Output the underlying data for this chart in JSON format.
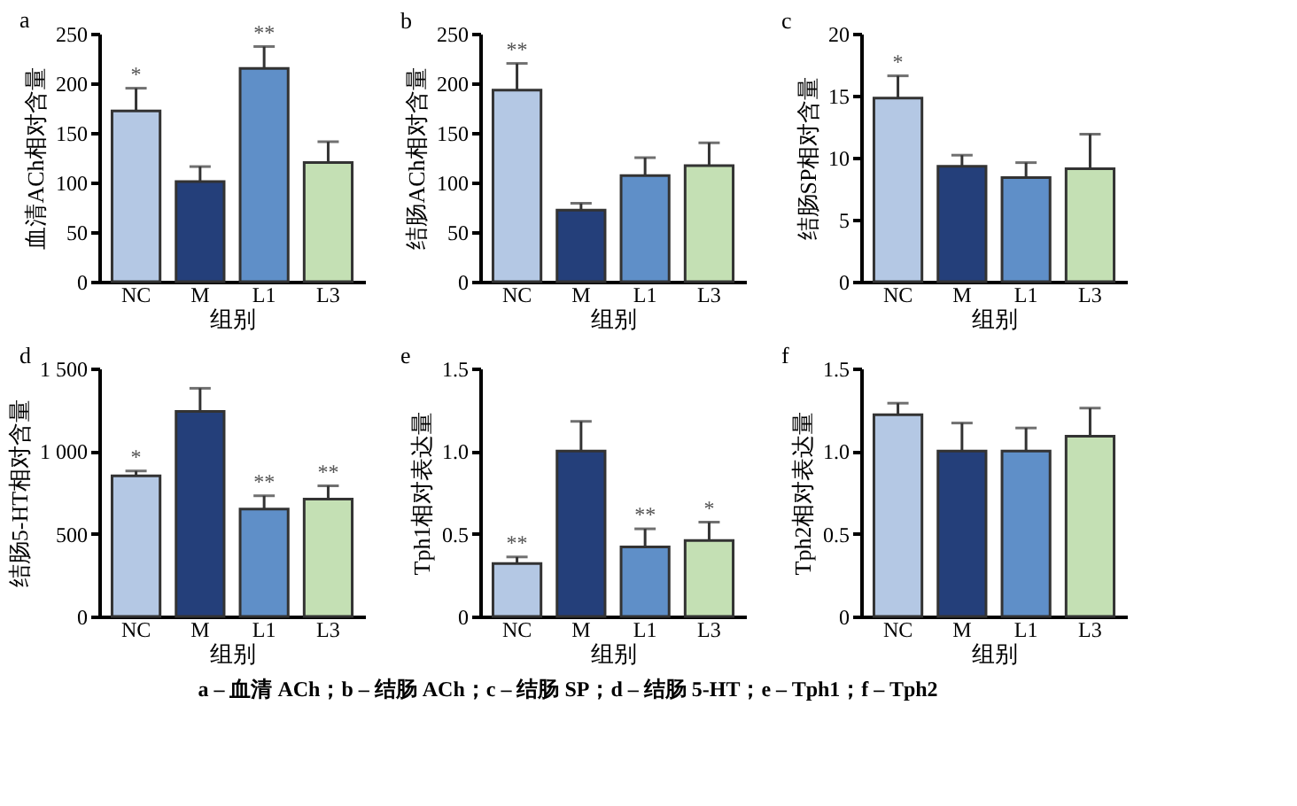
{
  "chart_data": [
    {
      "type": "bar",
      "title": "a",
      "categories": [
        "NC",
        "M",
        "L1",
        "L3"
      ],
      "values": [
        172,
        101,
        215,
        120
      ],
      "colors": [
        "#b4c8e4",
        "#243f7a",
        "#5f8fc8",
        "#c4e0b4"
      ],
      "errors": [
        [
          172,
          195
        ],
        [
          101,
          116
        ],
        [
          215,
          237
        ],
        [
          120,
          141
        ]
      ],
      "ylim": [
        0,
        250
      ],
      "yticks": [
        0,
        50,
        100,
        150,
        200,
        250
      ],
      "xlabel": "组别",
      "ylabel": "血清ACh相对含量",
      "annotations": [
        {
          "text": "*",
          "x": "NC",
          "y": 195
        },
        {
          "text": "**",
          "x": "L1",
          "y": 237
        }
      ]
    },
    {
      "type": "bar",
      "title": "b",
      "categories": [
        "NC",
        "M",
        "L1",
        "L3"
      ],
      "values": [
        193,
        72,
        107,
        117
      ],
      "colors": [
        "#b4c8e4",
        "#243f7a",
        "#5f8fc8",
        "#c4e0b4"
      ],
      "errors": [
        [
          193,
          220
        ],
        [
          72,
          79
        ],
        [
          107,
          125
        ],
        [
          117,
          140
        ]
      ],
      "ylim": [
        0,
        250
      ],
      "yticks": [
        0,
        50,
        100,
        150,
        200,
        250
      ],
      "xlabel": "组别",
      "ylabel": "结肠ACh相对含量",
      "annotations": [
        {
          "text": "**",
          "x": "NC",
          "y": 220
        }
      ]
    },
    {
      "type": "bar",
      "title": "c",
      "categories": [
        "NC",
        "M",
        "L1",
        "L3"
      ],
      "values": [
        14.8,
        9.3,
        8.4,
        9.1
      ],
      "colors": [
        "#b4c8e4",
        "#243f7a",
        "#5f8fc8",
        "#c4e0b4"
      ],
      "errors": [
        [
          14.8,
          16.6
        ],
        [
          9.3,
          10.2
        ],
        [
          8.4,
          9.6
        ],
        [
          9.1,
          11.9
        ]
      ],
      "ylim": [
        0,
        20
      ],
      "yticks": [
        0,
        5,
        10,
        15,
        20
      ],
      "xlabel": "组别",
      "ylabel": "结肠SP相对含量",
      "annotations": [
        {
          "text": "*",
          "x": "NC",
          "y": 16.6
        }
      ]
    },
    {
      "type": "bar",
      "title": "d",
      "categories": [
        "NC",
        "M",
        "L1",
        "L3"
      ],
      "values": [
        850,
        1240,
        650,
        710
      ],
      "colors": [
        "#b4c8e4",
        "#243f7a",
        "#5f8fc8",
        "#c4e0b4"
      ],
      "errors": [
        [
          850,
          880
        ],
        [
          1240,
          1380
        ],
        [
          650,
          730
        ],
        [
          710,
          790
        ]
      ],
      "ylim": [
        0,
        1500
      ],
      "yticks": [
        0,
        500,
        {
          "value": 1000,
          "label": "1 000"
        },
        {
          "value": 1500,
          "label": "1 500"
        }
      ],
      "xlabel": "组别",
      "ylabel": "结肠5-HT相对含量",
      "annotations": [
        {
          "text": "*",
          "x": "NC",
          "y": 880
        },
        {
          "text": "**",
          "x": "L1",
          "y": 730
        },
        {
          "text": "**",
          "x": "L3",
          "y": 790
        }
      ]
    },
    {
      "type": "bar",
      "title": "e",
      "categories": [
        "NC",
        "M",
        "L1",
        "L3"
      ],
      "values": [
        0.32,
        1.0,
        0.42,
        0.46
      ],
      "colors": [
        "#b4c8e4",
        "#243f7a",
        "#5f8fc8",
        "#c4e0b4"
      ],
      "errors": [
        [
          0.32,
          0.36
        ],
        [
          1.0,
          1.18
        ],
        [
          0.42,
          0.53
        ],
        [
          0.46,
          0.57
        ]
      ],
      "ylim": [
        0,
        1.5
      ],
      "yticks": [
        0,
        {
          "value": 0.5,
          "label": "0.5"
        },
        {
          "value": 1,
          "label": "1.0"
        },
        {
          "value": 1.5,
          "label": "1.5"
        }
      ],
      "xlabel": "组别",
      "ylabel": "Tph1相对表达量",
      "annotations": [
        {
          "text": "**",
          "x": "NC",
          "y": 0.36
        },
        {
          "text": "**",
          "x": "L1",
          "y": 0.53
        },
        {
          "text": "*",
          "x": "L3",
          "y": 0.57
        }
      ]
    },
    {
      "type": "bar",
      "title": "f",
      "categories": [
        "NC",
        "M",
        "L1",
        "L3"
      ],
      "values": [
        1.22,
        1.0,
        1.0,
        1.09
      ],
      "colors": [
        "#b4c8e4",
        "#243f7a",
        "#5f8fc8",
        "#c4e0b4"
      ],
      "errors": [
        [
          1.22,
          1.29
        ],
        [
          1.0,
          1.17
        ],
        [
          1.0,
          1.14
        ],
        [
          1.09,
          1.26
        ]
      ],
      "ylim": [
        0,
        1.5
      ],
      "yticks": [
        0,
        {
          "value": 0.5,
          "label": "0.5"
        },
        {
          "value": 1,
          "label": "1.0"
        },
        {
          "value": 1.5,
          "label": "1.5"
        }
      ],
      "xlabel": "组别",
      "ylabel": "Tph2相对表达量",
      "annotations": [
        "a – 血清 ACh；b – 结肠 ACh；c – 结肠 SP；d – 结肠 5-HT；e – Tph1；f – Tph2"
      ]
    }
  ]
}
